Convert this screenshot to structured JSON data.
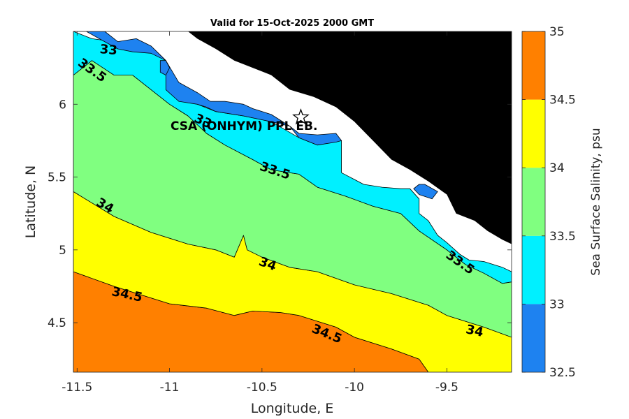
{
  "chart_data": {
    "type": "heatmap",
    "title": "Valid for 15-Oct-2025 2000 GMT",
    "xlabel": "Longitude, E",
    "ylabel": "Latitude, N",
    "xlim": [
      -11.52,
      -9.15
    ],
    "ylim": [
      4.16,
      6.5
    ],
    "x_ticks": [
      -11.5,
      -11,
      -10.5,
      -10,
      -9.5
    ],
    "x_tick_labels": [
      "-11.5",
      "-11",
      "-10.5",
      "-10",
      "-9.5"
    ],
    "y_ticks": [
      4.5,
      5,
      5.5,
      6
    ],
    "y_tick_labels": [
      "4.5",
      "5",
      "5.5",
      "6"
    ],
    "colorbar": {
      "label": "Sea Surface Salinity, psu",
      "levels": [
        32.5,
        33,
        33.5,
        34,
        34.5,
        35
      ],
      "tick_labels": [
        "32.5",
        "33",
        "33.5",
        "34",
        "34.5",
        "35"
      ],
      "colors": [
        "#1e82f0",
        "#00f0ff",
        "#80ff80",
        "#ffff00",
        "#ff8000"
      ]
    },
    "land_color": "#000000",
    "nodata_color": "#ffffff",
    "zones": [
      {
        "value_range": [
          34.5,
          35
        ],
        "polygon": [
          [
            -11.52,
            4.85
          ],
          [
            -11.3,
            4.75
          ],
          [
            -11.0,
            4.63
          ],
          [
            -10.8,
            4.6
          ],
          [
            -10.65,
            4.55
          ],
          [
            -10.55,
            4.58
          ],
          [
            -10.4,
            4.57
          ],
          [
            -10.3,
            4.55
          ],
          [
            -10.1,
            4.47
          ],
          [
            -10.0,
            4.4
          ],
          [
            -9.8,
            4.32
          ],
          [
            -9.65,
            4.25
          ],
          [
            -9.6,
            4.16
          ],
          [
            -11.52,
            4.16
          ]
        ]
      },
      {
        "value_range": [
          34,
          34.5
        ],
        "polygon": [
          [
            -11.52,
            5.4
          ],
          [
            -11.3,
            5.23
          ],
          [
            -11.1,
            5.12
          ],
          [
            -10.9,
            5.04
          ],
          [
            -10.75,
            5.0
          ],
          [
            -10.65,
            4.95
          ],
          [
            -10.6,
            5.1
          ],
          [
            -10.58,
            5.0
          ],
          [
            -10.5,
            4.95
          ],
          [
            -10.35,
            4.88
          ],
          [
            -10.2,
            4.85
          ],
          [
            -10.0,
            4.76
          ],
          [
            -9.8,
            4.7
          ],
          [
            -9.6,
            4.62
          ],
          [
            -9.5,
            4.55
          ],
          [
            -9.3,
            4.47
          ],
          [
            -9.15,
            4.4
          ],
          [
            -9.15,
            4.16
          ],
          [
            -9.6,
            4.16
          ],
          [
            -9.65,
            4.25
          ],
          [
            -9.8,
            4.32
          ],
          [
            -10.0,
            4.4
          ],
          [
            -10.1,
            4.47
          ],
          [
            -10.3,
            4.55
          ],
          [
            -10.4,
            4.57
          ],
          [
            -10.55,
            4.58
          ],
          [
            -10.65,
            4.55
          ],
          [
            -10.8,
            4.6
          ],
          [
            -11.0,
            4.63
          ],
          [
            -11.3,
            4.75
          ],
          [
            -11.52,
            4.85
          ]
        ]
      },
      {
        "value_range": [
          33.5,
          34
        ],
        "polygon": [
          [
            -11.52,
            6.2
          ],
          [
            -11.42,
            6.3
          ],
          [
            -11.3,
            6.2
          ],
          [
            -11.2,
            6.2
          ],
          [
            -11.1,
            6.1
          ],
          [
            -11.0,
            6.0
          ],
          [
            -10.9,
            5.92
          ],
          [
            -10.8,
            5.8
          ],
          [
            -10.7,
            5.72
          ],
          [
            -10.55,
            5.62
          ],
          [
            -10.45,
            5.55
          ],
          [
            -10.3,
            5.52
          ],
          [
            -10.2,
            5.43
          ],
          [
            -10.05,
            5.37
          ],
          [
            -9.9,
            5.3
          ],
          [
            -9.75,
            5.25
          ],
          [
            -9.65,
            5.13
          ],
          [
            -9.5,
            5.0
          ],
          [
            -9.4,
            4.9
          ],
          [
            -9.3,
            4.84
          ],
          [
            -9.2,
            4.77
          ],
          [
            -9.15,
            4.78
          ],
          [
            -9.15,
            4.4
          ],
          [
            -9.3,
            4.47
          ],
          [
            -9.5,
            4.55
          ],
          [
            -9.6,
            4.62
          ],
          [
            -9.8,
            4.7
          ],
          [
            -10.0,
            4.76
          ],
          [
            -10.2,
            4.85
          ],
          [
            -10.35,
            4.88
          ],
          [
            -10.5,
            4.95
          ],
          [
            -10.58,
            5.0
          ],
          [
            -10.6,
            5.1
          ],
          [
            -10.65,
            4.95
          ],
          [
            -10.75,
            5.0
          ],
          [
            -10.9,
            5.04
          ],
          [
            -11.1,
            5.12
          ],
          [
            -11.3,
            5.23
          ],
          [
            -11.52,
            5.4
          ]
        ]
      },
      {
        "value_range": [
          33,
          33.5
        ],
        "polygon": [
          [
            -11.52,
            6.5
          ],
          [
            -11.42,
            6.45
          ],
          [
            -11.3,
            6.43
          ],
          [
            -11.1,
            6.4
          ],
          [
            -11.02,
            6.3
          ],
          [
            -10.95,
            6.1
          ],
          [
            -10.85,
            6.0
          ],
          [
            -10.75,
            5.95
          ],
          [
            -10.6,
            5.92
          ],
          [
            -10.45,
            5.88
          ],
          [
            -10.3,
            5.77
          ],
          [
            -10.2,
            5.72
          ],
          [
            -10.07,
            5.75
          ],
          [
            -10.07,
            5.53
          ],
          [
            -9.95,
            5.45
          ],
          [
            -9.85,
            5.43
          ],
          [
            -9.75,
            5.42
          ],
          [
            -9.7,
            5.42
          ],
          [
            -9.65,
            5.35
          ],
          [
            -9.65,
            5.25
          ],
          [
            -9.6,
            5.2
          ],
          [
            -9.55,
            5.1
          ],
          [
            -9.5,
            5.05
          ],
          [
            -9.43,
            4.97
          ],
          [
            -9.38,
            4.93
          ],
          [
            -9.3,
            4.92
          ],
          [
            -9.2,
            4.88
          ],
          [
            -9.15,
            4.85
          ],
          [
            -9.15,
            4.78
          ],
          [
            -9.2,
            4.77
          ],
          [
            -9.3,
            4.84
          ],
          [
            -9.4,
            4.9
          ],
          [
            -9.5,
            5.0
          ],
          [
            -9.65,
            5.13
          ],
          [
            -9.75,
            5.25
          ],
          [
            -9.9,
            5.3
          ],
          [
            -10.05,
            5.37
          ],
          [
            -10.2,
            5.43
          ],
          [
            -10.3,
            5.52
          ],
          [
            -10.45,
            5.55
          ],
          [
            -10.55,
            5.62
          ],
          [
            -10.7,
            5.72
          ],
          [
            -10.8,
            5.8
          ],
          [
            -10.9,
            5.92
          ],
          [
            -11.0,
            6.0
          ],
          [
            -11.1,
            6.1
          ],
          [
            -11.2,
            6.2
          ],
          [
            -11.3,
            6.2
          ],
          [
            -11.42,
            6.3
          ],
          [
            -11.52,
            6.2
          ]
        ]
      },
      {
        "value_range": [
          32.5,
          33
        ],
        "polygon": [
          [
            -11.52,
            6.5
          ],
          [
            -11.35,
            6.5
          ],
          [
            -11.28,
            6.43
          ],
          [
            -11.18,
            6.45
          ],
          [
            -11.1,
            6.4
          ],
          [
            -11.02,
            6.3
          ],
          [
            -11.02,
            6.1
          ],
          [
            -10.95,
            6.02
          ],
          [
            -10.85,
            6.0
          ],
          [
            -10.8,
            5.98
          ],
          [
            -10.75,
            5.95
          ],
          [
            -10.6,
            5.92
          ],
          [
            -10.45,
            5.88
          ],
          [
            -10.35,
            5.85
          ],
          [
            -10.3,
            5.77
          ],
          [
            -10.2,
            5.72
          ],
          [
            -10.1,
            5.74
          ],
          [
            -10.07,
            5.75
          ],
          [
            -10.1,
            5.8
          ],
          [
            -10.2,
            5.79
          ],
          [
            -10.3,
            5.8
          ],
          [
            -10.35,
            5.85
          ],
          [
            -10.45,
            5.93
          ],
          [
            -10.55,
            5.97
          ],
          [
            -10.6,
            6.0
          ],
          [
            -10.7,
            6.02
          ],
          [
            -10.78,
            6.02
          ],
          [
            -10.85,
            6.08
          ],
          [
            -10.95,
            6.15
          ],
          [
            -11.02,
            6.3
          ],
          [
            -11.1,
            6.35
          ],
          [
            -11.2,
            6.36
          ],
          [
            -11.28,
            6.38
          ],
          [
            -11.38,
            6.45
          ],
          [
            -11.45,
            6.5
          ]
        ]
      },
      {
        "value_range": [
          32.5,
          33
        ],
        "polygon": [
          [
            -9.65,
            5.45
          ],
          [
            -9.62,
            5.45
          ],
          [
            -9.55,
            5.4
          ],
          [
            -9.58,
            5.35
          ],
          [
            -9.65,
            5.38
          ],
          [
            -9.68,
            5.42
          ]
        ]
      },
      {
        "value_range": [
          32.5,
          33
        ],
        "polygon": [
          [
            -11.05,
            6.3
          ],
          [
            -11.02,
            6.3
          ],
          [
            -11.0,
            6.25
          ],
          [
            -11.02,
            6.2
          ],
          [
            -11.05,
            6.22
          ]
        ]
      }
    ],
    "land_polygon": [
      [
        -10.9,
        6.5
      ],
      [
        -10.85,
        6.45
      ],
      [
        -10.75,
        6.38
      ],
      [
        -10.65,
        6.3
      ],
      [
        -10.55,
        6.25
      ],
      [
        -10.45,
        6.2
      ],
      [
        -10.35,
        6.1
      ],
      [
        -10.22,
        6.05
      ],
      [
        -10.1,
        5.98
      ],
      [
        -10.0,
        5.88
      ],
      [
        -9.9,
        5.75
      ],
      [
        -9.8,
        5.62
      ],
      [
        -9.7,
        5.55
      ],
      [
        -9.6,
        5.47
      ],
      [
        -9.5,
        5.38
      ],
      [
        -9.45,
        5.25
      ],
      [
        -9.35,
        5.2
      ],
      [
        -9.28,
        5.13
      ],
      [
        -9.2,
        5.07
      ],
      [
        -9.15,
        5.04
      ],
      [
        -9.15,
        6.5
      ]
    ],
    "contour_labels": [
      {
        "text": "33",
        "x": -11.33,
        "y": 6.37,
        "angle": 5
      },
      {
        "text": "33.5",
        "x": -11.42,
        "y": 6.23,
        "angle": 35
      },
      {
        "text": "33",
        "x": -10.82,
        "y": 5.88,
        "angle": 25
      },
      {
        "text": "33.5",
        "x": -10.43,
        "y": 5.54,
        "angle": 18
      },
      {
        "text": "34",
        "x": -11.35,
        "y": 5.3,
        "angle": 30
      },
      {
        "text": "33.5",
        "x": -9.43,
        "y": 4.91,
        "angle": 35
      },
      {
        "text": "34",
        "x": -10.47,
        "y": 4.9,
        "angle": 20
      },
      {
        "text": "34.5",
        "x": -11.23,
        "y": 4.69,
        "angle": 12
      },
      {
        "text": "34.5",
        "x": -10.15,
        "y": 4.42,
        "angle": 22
      },
      {
        "text": "34",
        "x": -9.35,
        "y": 4.44,
        "angle": 12
      }
    ],
    "station": {
      "label": "CSA (ONHYM) PPL EB.",
      "lon": -10.29,
      "lat": 5.91,
      "symbol": "star"
    }
  }
}
